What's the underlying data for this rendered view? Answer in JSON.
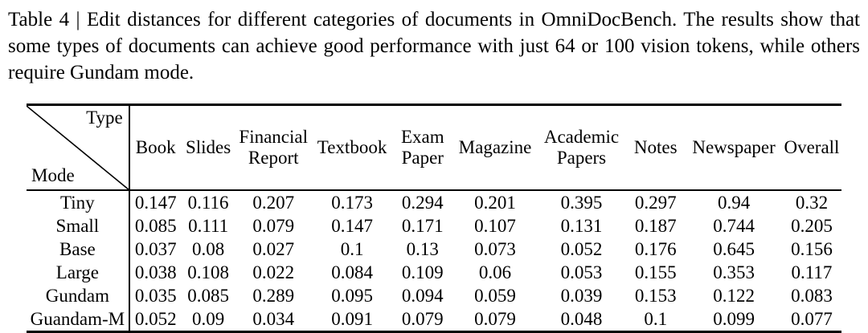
{
  "caption": {
    "text": "Table 4 | Edit distances for different categories of documents in OmniDocBench. The results show that some types of documents can achieve good performance with just 64 or 100 vision tokens, while others require Gundam mode."
  },
  "table": {
    "corner": {
      "top_right": "Type",
      "bottom_left": "Mode"
    },
    "columns": [
      "Book",
      "Slides",
      "Financial\nReport",
      "Textbook",
      "Exam\nPaper",
      "Magazine",
      "Academic\nPapers",
      "Notes",
      "Newspaper",
      "Overall"
    ],
    "rows": [
      {
        "mode": "Tiny",
        "values": [
          "0.147",
          "0.116",
          "0.207",
          "0.173",
          "0.294",
          "0.201",
          "0.395",
          "0.297",
          "0.94",
          "0.32"
        ]
      },
      {
        "mode": "Small",
        "values": [
          "0.085",
          "0.111",
          "0.079",
          "0.147",
          "0.171",
          "0.107",
          "0.131",
          "0.187",
          "0.744",
          "0.205"
        ]
      },
      {
        "mode": "Base",
        "values": [
          "0.037",
          "0.08",
          "0.027",
          "0.1",
          "0.13",
          "0.073",
          "0.052",
          "0.176",
          "0.645",
          "0.156"
        ]
      },
      {
        "mode": "Large",
        "values": [
          "0.038",
          "0.108",
          "0.022",
          "0.084",
          "0.109",
          "0.06",
          "0.053",
          "0.155",
          "0.353",
          "0.117"
        ]
      },
      {
        "mode": "Gundam",
        "values": [
          "0.035",
          "0.085",
          "0.289",
          "0.095",
          "0.094",
          "0.059",
          "0.039",
          "0.153",
          "0.122",
          "0.083"
        ]
      },
      {
        "mode": "Guandam-M",
        "values": [
          "0.052",
          "0.09",
          "0.034",
          "0.091",
          "0.079",
          "0.079",
          "0.048",
          "0.1",
          "0.099",
          "0.077"
        ]
      }
    ]
  },
  "colors": {
    "text": "#000000",
    "background": "#ffffff",
    "rule": "#000000"
  }
}
